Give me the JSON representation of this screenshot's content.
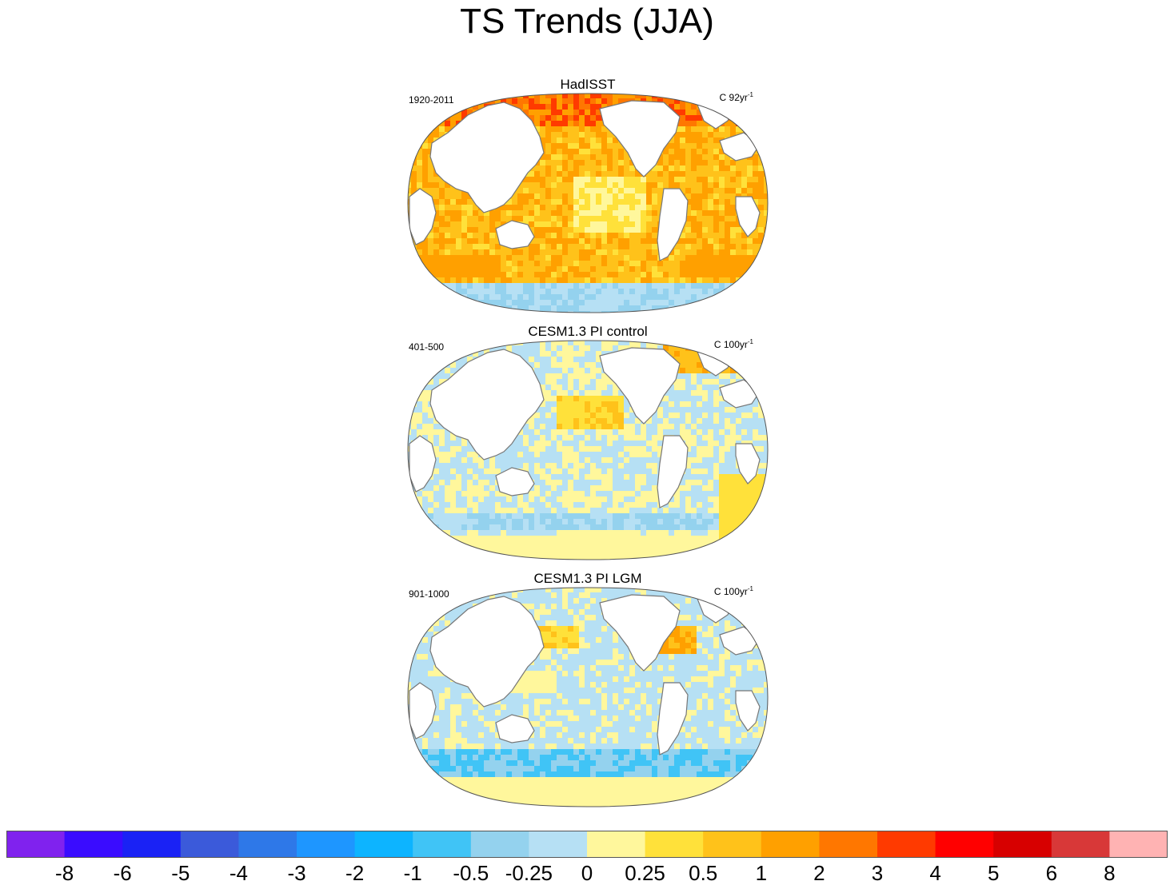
{
  "title": "TS Trends (JJA)",
  "panels": [
    {
      "title": "HadISST",
      "period": "1920-2011",
      "units_prefix": "C 92yr",
      "units_exp": "-1",
      "pattern": "warm"
    },
    {
      "title": "CESM1.3 PI control",
      "period": "401-500",
      "units_prefix": "C 100yr",
      "units_exp": "-1",
      "pattern": "mixed"
    },
    {
      "title": "CESM1.3 PI LGM",
      "period": "901-1000",
      "units_prefix": "C 100yr",
      "units_exp": "-1",
      "pattern": "cool"
    }
  ],
  "colorbar": {
    "colors": [
      "#8022ee",
      "#3a0cff",
      "#1a22f5",
      "#3b5ada",
      "#2e78e8",
      "#1e96ff",
      "#0db4ff",
      "#40c4f6",
      "#94d2ee",
      "#b6e0f4",
      "#fff79c",
      "#ffe13a",
      "#ffc21a",
      "#ffa000",
      "#ff7700",
      "#ff3a00",
      "#ff0000",
      "#d70000",
      "#d83838",
      "#ffb3b3"
    ],
    "labels": [
      "-8",
      "-6",
      "-5",
      "-4",
      "-3",
      "-2",
      "-1",
      "-0.5",
      "-0.25",
      "0",
      "0.25",
      "0.5",
      "1",
      "2",
      "3",
      "4",
      "5",
      "6",
      "8"
    ]
  },
  "chart_data": [
    {
      "type": "heatmap",
      "title": "HadISST",
      "subtitle": "1920-2011",
      "units": "C 92yr-1",
      "summary": "Predominantly warming (0.5 to 1) across ocean basins; strongest warming (2 to 4) in Arctic/Bering region; slight cooling (-0.5 to -1) near Antarctic coast"
    },
    {
      "type": "heatmap",
      "title": "CESM1.3 PI control",
      "subtitle": "401-500",
      "units": "C 100yr-1",
      "summary": "Weak trends (-0.25 to 0.5) with mixed sign; cooling bands in Indian Ocean and Southern Hemisphere midlatitudes"
    },
    {
      "type": "heatmap",
      "title": "CESM1.3 PI LGM",
      "subtitle": "901-1000",
      "units": "C 100yr-1",
      "summary": "Widespread weak cooling (-0.25 to -0.5), strongest cooling (-0.5 to -1) in Southern Ocean; warming (0.5 to 1) in North Atlantic and North Pacific"
    }
  ]
}
